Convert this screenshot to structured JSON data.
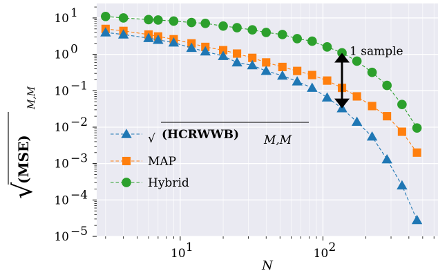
{
  "chart_data": {
    "type": "line",
    "xscale": "log",
    "yscale": "log",
    "xlim": [
      2.6,
      640
    ],
    "ylim": [
      1e-05,
      25
    ],
    "xlabel": "N",
    "ylabel": "√(MSE)_{M,M}",
    "ylabel_parts": {
      "radical": "√",
      "main": "(MSE)",
      "sub": "M,M"
    },
    "x_ticks": [
      {
        "value": 10,
        "base": "10",
        "exp": "1"
      },
      {
        "value": 100,
        "base": "10",
        "exp": "2"
      }
    ],
    "y_ticks": [
      {
        "value": 10,
        "base": "10",
        "exp": "1"
      },
      {
        "value": 1,
        "base": "10",
        "exp": "0"
      },
      {
        "value": 0.1,
        "base": "10",
        "exp": "−1"
      },
      {
        "value": 0.01,
        "base": "10",
        "exp": "−2"
      },
      {
        "value": 0.001,
        "base": "10",
        "exp": "−3"
      },
      {
        "value": 0.0001,
        "base": "10",
        "exp": "−4"
      },
      {
        "value": 1e-05,
        "base": "10",
        "exp": "−5"
      }
    ],
    "grid": true,
    "legend_position": "lower-left",
    "series": [
      {
        "name": "√((HCRWWB)_{M,M})",
        "legend_parts": {
          "radical": "√",
          "main": "(HCRWWB)",
          "sub": "M,M"
        },
        "color": "#1f77b4",
        "marker": "triangle",
        "x": [
          3,
          4,
          6,
          7,
          9,
          12,
          15,
          20,
          25,
          32,
          40,
          52,
          66,
          84,
          107,
          136,
          173,
          221,
          281,
          358,
          456
        ],
        "y": [
          4.0,
          3.5,
          2.8,
          2.5,
          2.1,
          1.5,
          1.2,
          0.9,
          0.6,
          0.5,
          0.35,
          0.26,
          0.18,
          0.12,
          0.065,
          0.033,
          0.014,
          0.0055,
          0.0013,
          0.00025,
          2.8e-05
        ]
      },
      {
        "name": "MAP",
        "color": "#ff7f0e",
        "marker": "square",
        "x": [
          3,
          4,
          6,
          7,
          9,
          12,
          15,
          20,
          25,
          32,
          40,
          52,
          66,
          84,
          107,
          136,
          173,
          221,
          281,
          358,
          456
        ],
        "y": [
          5.0,
          4.4,
          3.5,
          3.1,
          2.6,
          2.0,
          1.6,
          1.3,
          1.05,
          0.8,
          0.6,
          0.45,
          0.35,
          0.27,
          0.19,
          0.12,
          0.07,
          0.038,
          0.02,
          0.0075,
          0.002
        ]
      },
      {
        "name": "Hybrid",
        "color": "#2ca02c",
        "marker": "circle",
        "x": [
          3,
          4,
          6,
          7,
          9,
          12,
          15,
          20,
          25,
          32,
          40,
          52,
          66,
          84,
          107,
          136,
          173,
          221,
          281,
          358,
          456
        ],
        "y": [
          11,
          10,
          9.0,
          8.8,
          8.2,
          7.5,
          7.1,
          6.0,
          5.4,
          4.7,
          4.0,
          3.5,
          2.7,
          2.3,
          1.6,
          1.1,
          0.65,
          0.32,
          0.14,
          0.042,
          0.0095
        ]
      }
    ],
    "annotation": {
      "text": "1 sample",
      "x": 136,
      "y_top": 1.1,
      "y_bottom": 0.033,
      "text_y": 1.2
    }
  }
}
